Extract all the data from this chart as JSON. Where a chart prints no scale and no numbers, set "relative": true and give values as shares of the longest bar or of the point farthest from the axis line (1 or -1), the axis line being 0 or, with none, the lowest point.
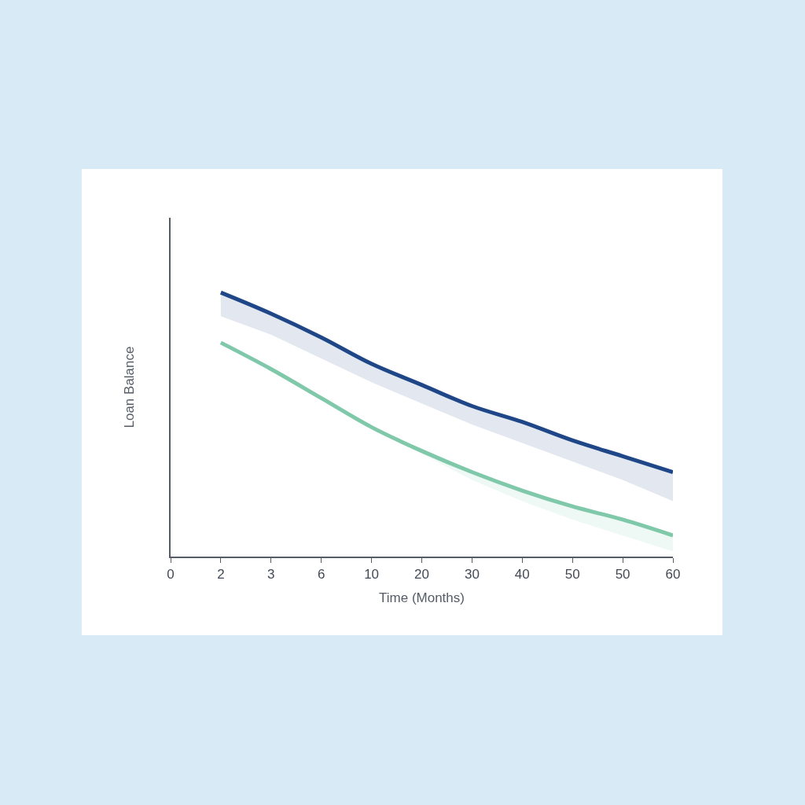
{
  "chart_data": {
    "type": "line",
    "relative": true,
    "xlabel": "Time (Months)",
    "ylabel": "Loan Balance",
    "categories": [
      "0",
      "2",
      "3",
      "6",
      "10",
      "20",
      "30",
      "40",
      "50",
      "50",
      "60"
    ],
    "series": [
      {
        "color": "#1f4788",
        "values": [
          null,
          1,
          0.92,
          0.83,
          0.73,
          0.65,
          0.57,
          0.51,
          0.44,
          0.38,
          0.32
        ],
        "upper": [
          null,
          1,
          0.92,
          0.83,
          0.73,
          0.65,
          0.57,
          0.51,
          0.44,
          0.38,
          0.32
        ],
        "lower": [
          null,
          0.91,
          0.84,
          0.75,
          0.66,
          0.58,
          0.5,
          0.43,
          0.36,
          0.29,
          0.21
        ]
      },
      {
        "color": "#7fc8a9",
        "values": [
          null,
          0.81,
          0.71,
          0.6,
          0.49,
          0.4,
          0.32,
          0.25,
          0.19,
          0.14,
          0.08
        ],
        "upper": [
          null,
          0.81,
          0.71,
          0.6,
          0.49,
          0.4,
          0.32,
          0.25,
          0.19,
          0.14,
          0.08
        ],
        "lower": [
          null,
          0.81,
          0.71,
          0.6,
          0.49,
          0.39,
          0.29,
          0.21,
          0.14,
          0.08,
          0.02
        ]
      }
    ]
  }
}
